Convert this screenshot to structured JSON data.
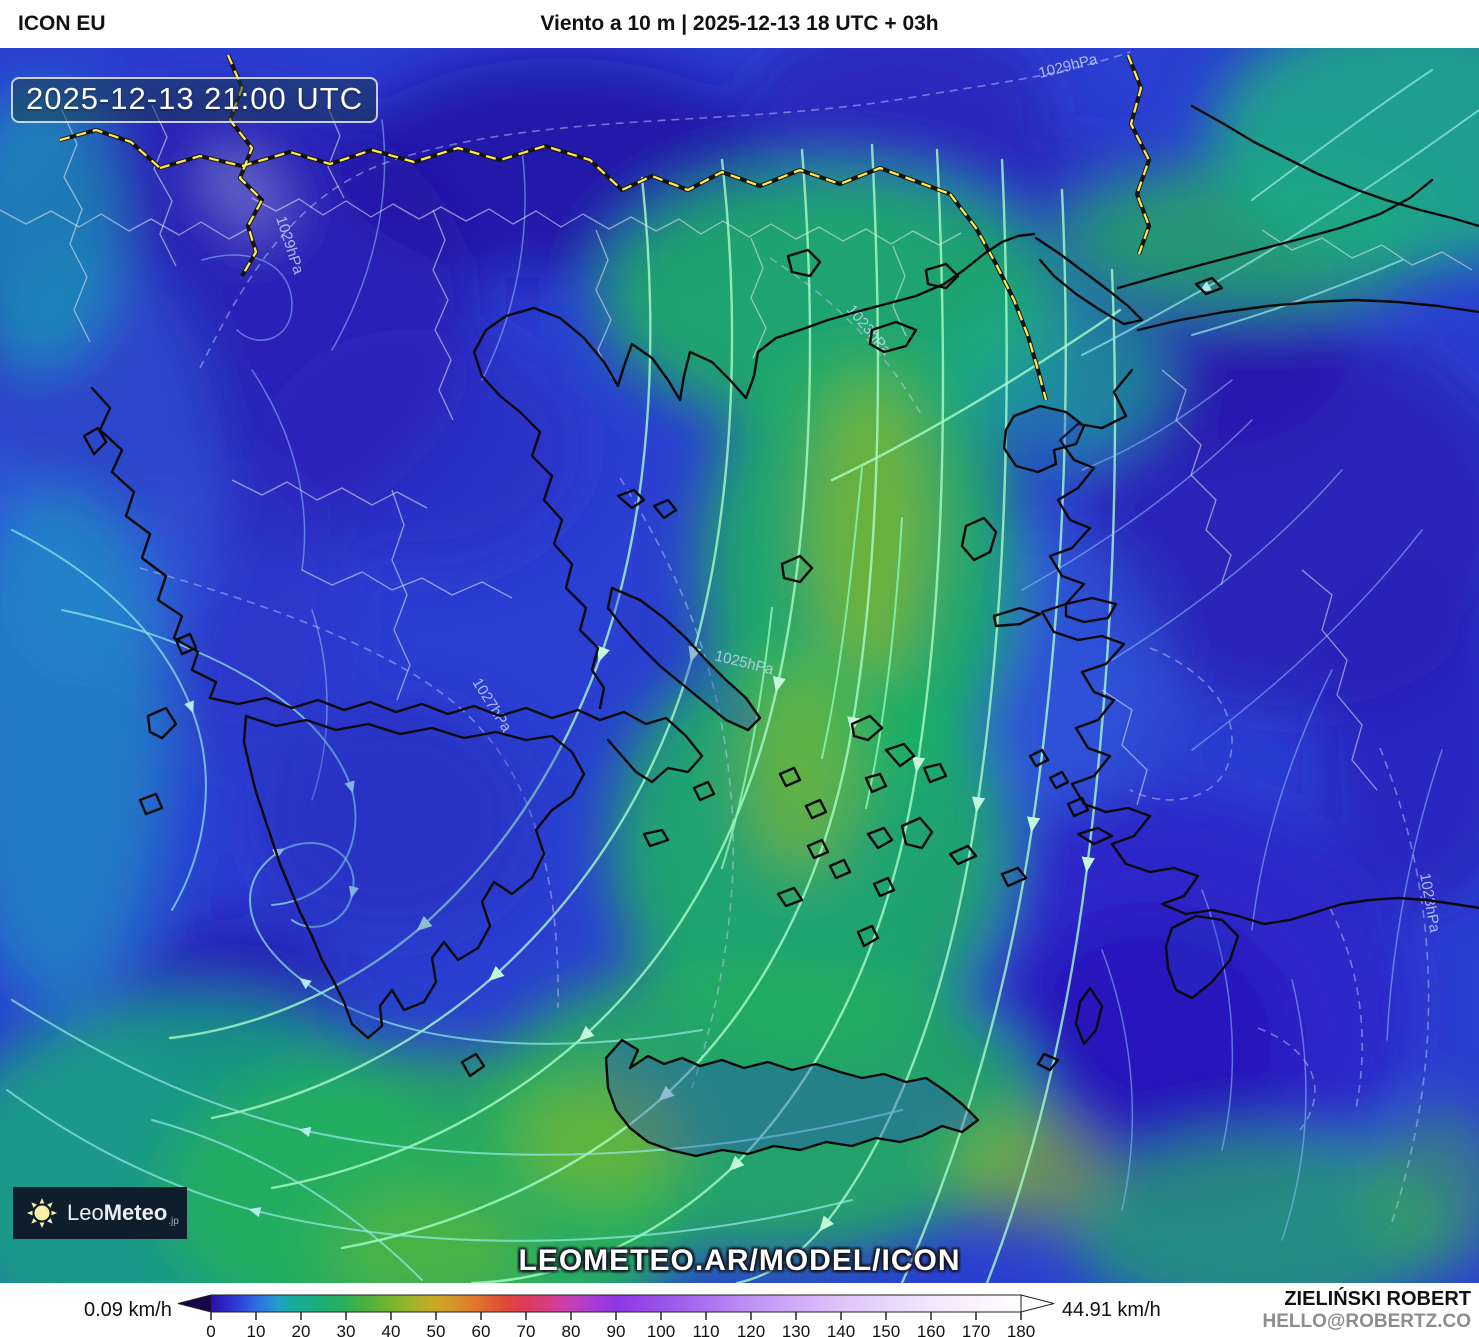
{
  "header": {
    "model": "ICON EU",
    "title": "Viento a 10 m | 2025-12-13 18 UTC + 03h"
  },
  "map": {
    "timestamp": "2025-12-13 21:00 UTC",
    "watermark": "LEOMETEO.AR/MODEL/ICON",
    "logo": {
      "prefix": "Leo",
      "bold": "Meteo",
      "suffix": ".jp"
    },
    "isobar_labels": [
      "1029hPa",
      "1029hPa",
      "1027hPa",
      "1025hPa",
      "1023hPa",
      "1023hPa"
    ]
  },
  "footer": {
    "min_value": "0.09 km/h",
    "max_value": "44.91 km/h",
    "credit_name": "ZIELIŃSKI ROBERT",
    "credit_contact": "HELLO@ROBERTZ.CO",
    "scale": {
      "unit": "km/h",
      "ticks": [
        0,
        10,
        20,
        30,
        40,
        50,
        60,
        70,
        80,
        90,
        100,
        110,
        120,
        130,
        140,
        150,
        160,
        170,
        180
      ],
      "range": [
        0,
        180
      ],
      "gradient": [
        [
          0,
          "#2c0da4"
        ],
        [
          5,
          "#2e35d4"
        ],
        [
          10,
          "#2f6ce2"
        ],
        [
          15,
          "#21a0cc"
        ],
        [
          18,
          "#18ab9e"
        ],
        [
          25,
          "#1dae74"
        ],
        [
          30,
          "#2bb156"
        ],
        [
          35,
          "#4fb23c"
        ],
        [
          40,
          "#76b52f"
        ],
        [
          45,
          "#a2b32a"
        ],
        [
          50,
          "#c9a926"
        ],
        [
          55,
          "#d98f28"
        ],
        [
          60,
          "#e06e2c"
        ],
        [
          65,
          "#e04a34"
        ],
        [
          70,
          "#de3a5c"
        ],
        [
          75,
          "#d83d88"
        ],
        [
          80,
          "#c640b6"
        ],
        [
          85,
          "#a83bd6"
        ],
        [
          90,
          "#8f35e4"
        ],
        [
          100,
          "#9a52ea"
        ],
        [
          110,
          "#ab71f0"
        ],
        [
          120,
          "#c092f4"
        ],
        [
          130,
          "#d1acf7"
        ],
        [
          140,
          "#dfc3fa"
        ],
        [
          150,
          "#e9d6fb"
        ],
        [
          160,
          "#f2e6fd"
        ],
        [
          170,
          "#f9f2fe"
        ],
        [
          180,
          "#ffffff"
        ]
      ],
      "arrow_left_color": "#150747",
      "arrow_right_color": "#ffffff"
    }
  },
  "colors": {
    "sea_base": "#2b3fd2",
    "wind_band_green": "#1fae66",
    "country_border": "#ffe84a",
    "logo_bg": "#0e1e2c",
    "sun": "#f6f1a3"
  }
}
